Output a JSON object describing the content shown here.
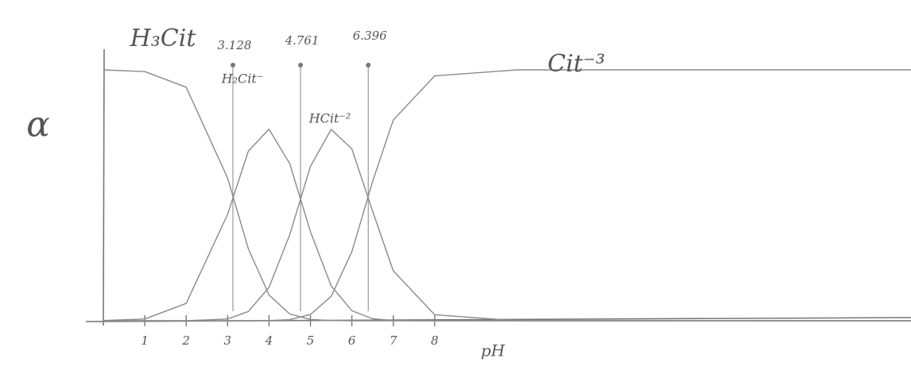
{
  "chart_data": {
    "type": "line",
    "xlabel": "pH",
    "ylabel": "α",
    "xlim": [
      0,
      19.5
    ],
    "ylim": [
      0,
      1
    ],
    "xticks": [
      1,
      2,
      3,
      4,
      5,
      6,
      7,
      8
    ],
    "pka": [
      3.128,
      4.761,
      6.396
    ],
    "x": [
      0,
      1,
      2,
      3,
      3.5,
      4,
      4.5,
      5,
      5.5,
      6,
      6.5,
      7,
      8,
      10,
      14,
      19.5
    ],
    "series": [
      {
        "name": "H₃Cit",
        "color": "#8a8a8a",
        "values": [
          1,
          0.993,
          0.931,
          0.569,
          0.287,
          0.103,
          0.027,
          0.005,
          0.001,
          0,
          0,
          0,
          0,
          0,
          0,
          0
        ]
      },
      {
        "name": "H₂Cit⁻",
        "color": "#8a8a8a",
        "values": [
          0.001,
          0.007,
          0.069,
          0.424,
          0.676,
          0.764,
          0.626,
          0.355,
          0.139,
          0.04,
          0.008,
          0.001,
          0,
          0,
          0,
          0
        ]
      },
      {
        "name": "HCit⁻²",
        "color": "#8a8a8a",
        "values": [
          0,
          0,
          0,
          0.007,
          0.037,
          0.133,
          0.343,
          0.615,
          0.763,
          0.685,
          0.437,
          0.199,
          0.024,
          0,
          0,
          0
        ]
      },
      {
        "name": "Cit⁻³",
        "color": "#8a8a8a",
        "values": [
          0,
          0,
          0,
          0,
          0,
          0.001,
          0.004,
          0.025,
          0.097,
          0.275,
          0.555,
          0.8,
          0.976,
          1,
          1,
          1
        ]
      }
    ]
  }
}
